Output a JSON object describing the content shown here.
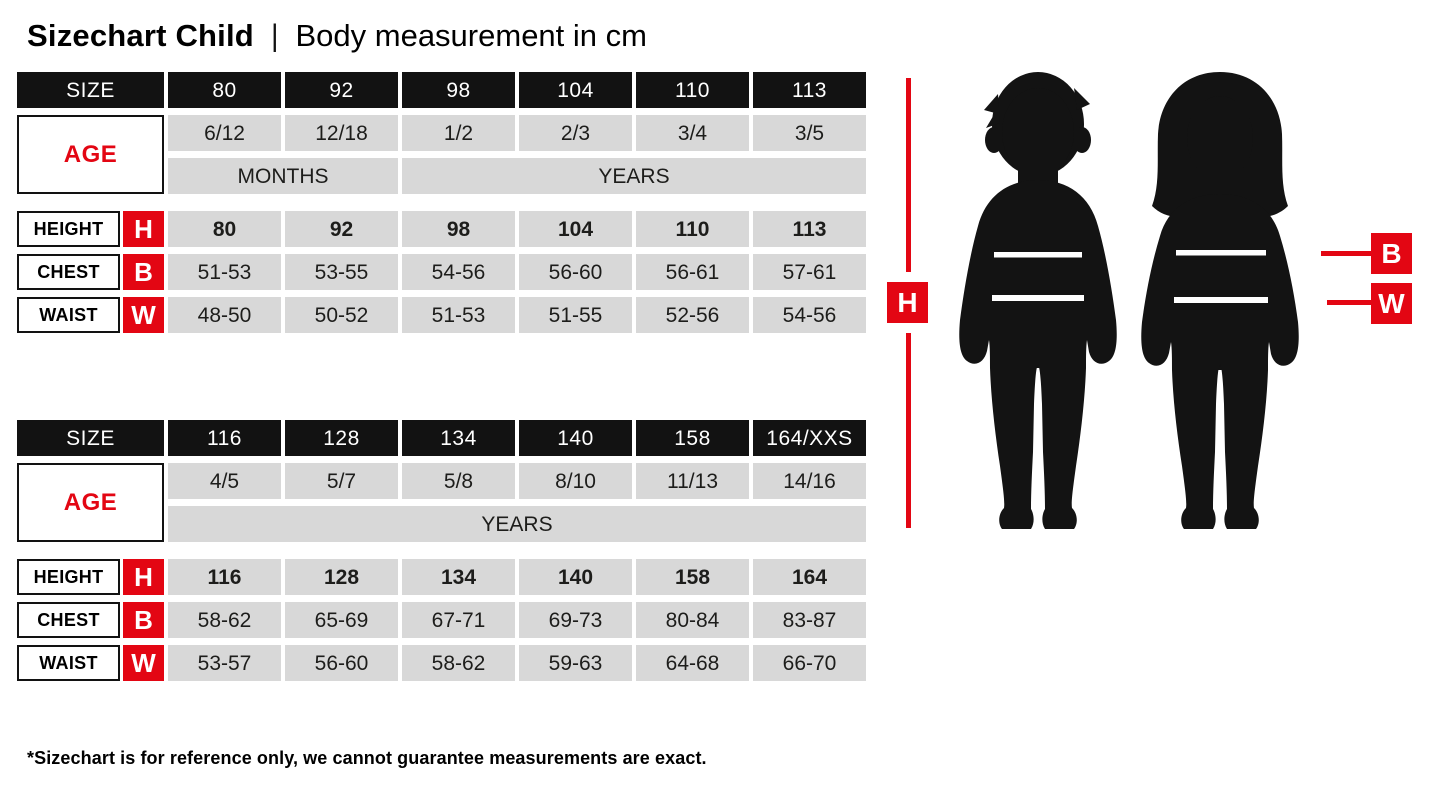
{
  "header": {
    "title": "Sizechart Child",
    "separator": "|",
    "subtitle": "Body measurement in cm"
  },
  "labels": {
    "size": "SIZE",
    "age": "AGE",
    "height": "HEIGHT",
    "chest": "CHEST",
    "waist": "WAIST"
  },
  "figure": {
    "h_label": "H",
    "b_label": "B",
    "w_label": "W"
  },
  "colors": {
    "accent_red": "#e30613",
    "cell_black": "#121212",
    "cell_gray": "#d8d8d8"
  },
  "tables": [
    {
      "sizes": [
        "80",
        "92",
        "98",
        "104",
        "110",
        "113"
      ],
      "ages": [
        "6/12",
        "12/18",
        "1/2",
        "2/3",
        "3/4",
        "3/5"
      ],
      "age_units": [
        {
          "label": "MONTHS",
          "span": 2
        },
        {
          "label": "YEARS",
          "span": 4
        }
      ],
      "height": [
        "80",
        "92",
        "98",
        "104",
        "110",
        "113"
      ],
      "chest": [
        "51-53",
        "53-55",
        "54-56",
        "56-60",
        "56-61",
        "57-61"
      ],
      "waist": [
        "48-50",
        "50-52",
        "51-53",
        "51-55",
        "52-56",
        "54-56"
      ]
    },
    {
      "sizes": [
        "116",
        "128",
        "134",
        "140",
        "158",
        "164/XXS"
      ],
      "ages": [
        "4/5",
        "5/7",
        "5/8",
        "8/10",
        "11/13",
        "14/16"
      ],
      "age_units": [
        {
          "label": "YEARS",
          "span": 6
        }
      ],
      "height": [
        "116",
        "128",
        "134",
        "140",
        "158",
        "164"
      ],
      "chest": [
        "58-62",
        "65-69",
        "67-71",
        "69-73",
        "80-84",
        "83-87"
      ],
      "waist": [
        "53-57",
        "56-60",
        "58-62",
        "59-63",
        "64-68",
        "66-70"
      ]
    }
  ],
  "footer": {
    "note": "*Sizechart is for reference only, we cannot guarantee measurements are exact."
  }
}
